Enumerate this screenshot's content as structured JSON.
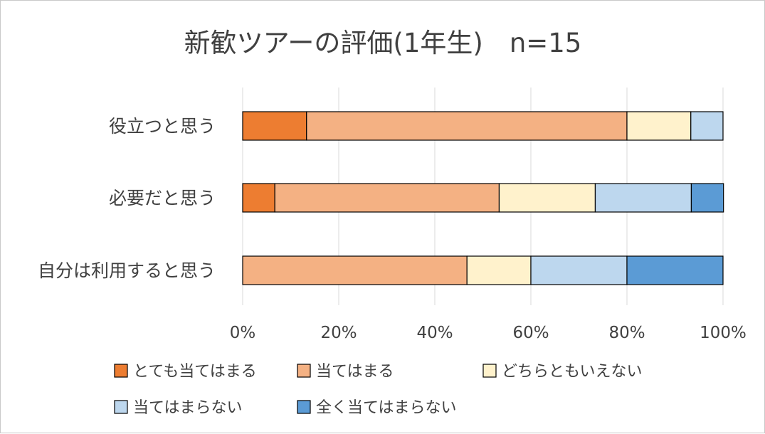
{
  "chart_data": {
    "type": "bar",
    "orientation": "horizontal",
    "stacked": "percent",
    "title": "新歓ツアーの評価(1年生)　n=15",
    "categories": [
      "役立つと思う",
      "必要だと思う",
      "自分は利用すると思う"
    ],
    "series": [
      {
        "name": "とても当てはまる",
        "color": "#ed7d31",
        "values": [
          13.3,
          6.7,
          0
        ]
      },
      {
        "name": "当てはまる",
        "color": "#f4b183",
        "values": [
          66.7,
          46.7,
          46.7
        ]
      },
      {
        "name": "どちらともいえない",
        "color": "#fff2cc",
        "values": [
          13.3,
          20.0,
          13.3
        ]
      },
      {
        "name": "当てはまらない",
        "color": "#bdd7ee",
        "values": [
          6.7,
          20.0,
          20.0
        ]
      },
      {
        "name": "全く当てはまらない",
        "color": "#5b9bd5",
        "values": [
          0,
          6.7,
          20.0
        ]
      }
    ],
    "xlim": [
      0,
      100
    ],
    "xticks": [
      "0%",
      "20%",
      "40%",
      "60%",
      "80%",
      "100%"
    ],
    "grid": true,
    "legend": "bottom"
  }
}
